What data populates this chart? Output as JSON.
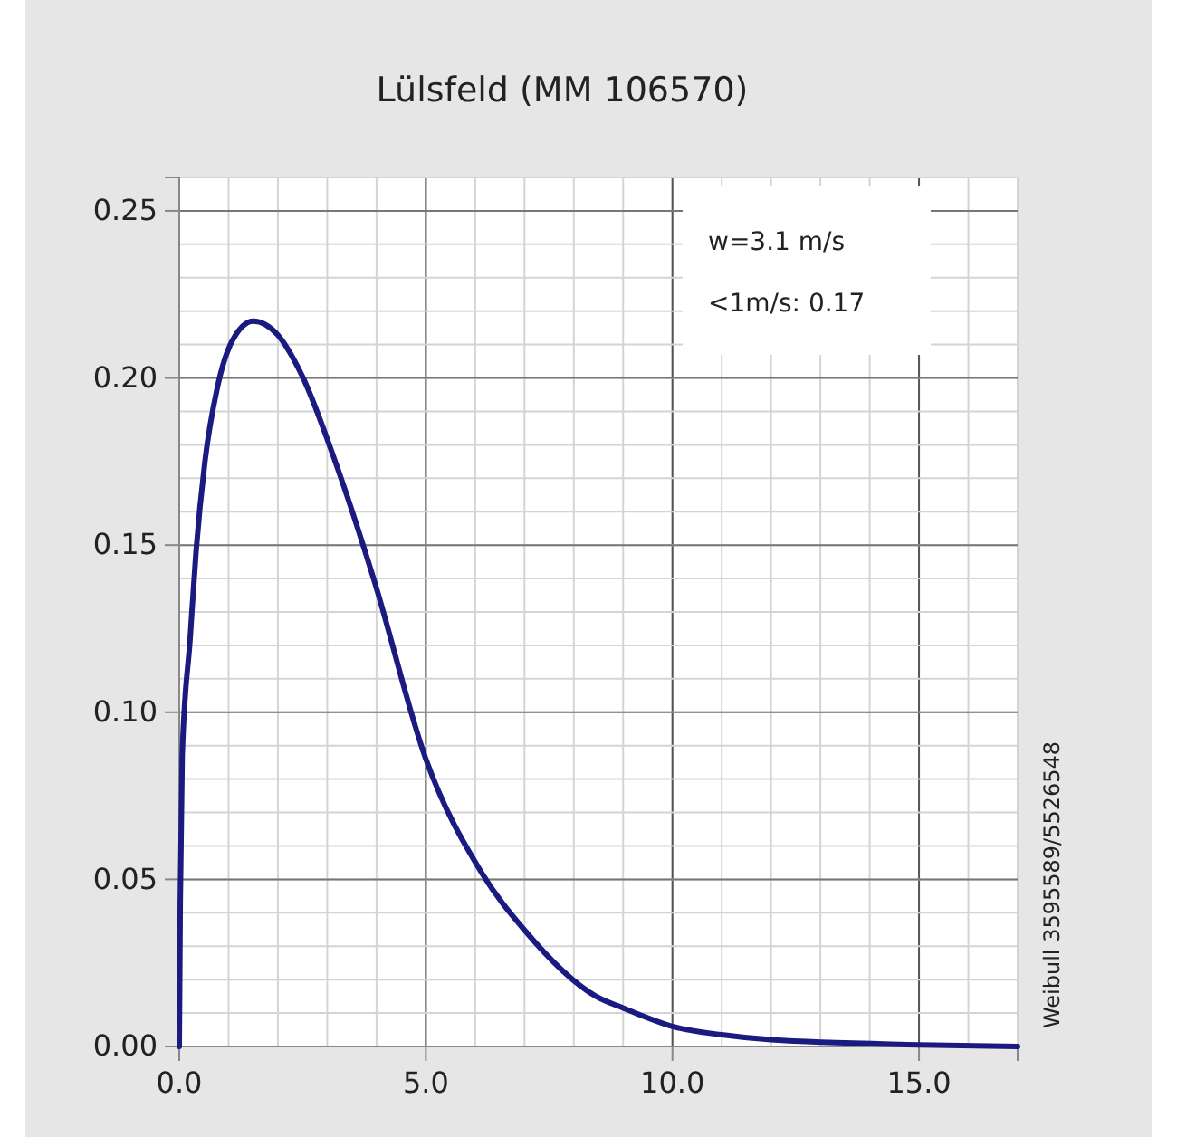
{
  "chart_data": {
    "type": "line",
    "title": "Lülsfeld (MM 106570)",
    "x": [
      0,
      0.02,
      0.06,
      0.22,
      0.34,
      0.52,
      0.77,
      1.07,
      1.5,
      1.99,
      2.48,
      3.21,
      3.94,
      5.0,
      6.13,
      6.99,
      8.45,
      9,
      10,
      11,
      12,
      15,
      17
    ],
    "series": [
      {
        "color": "#1a1a80",
        "values": [
          0,
          0.043,
          0.087,
          0.122,
          0.148,
          0.175,
          0.197,
          0.211,
          0.217,
          0.213,
          0.201,
          0.173,
          0.14,
          0.086,
          0.052,
          0.035,
          0.015,
          0.0115,
          0.006,
          0.0035,
          0.002,
          0.0005,
          0
        ]
      }
    ],
    "xlim": [
      0,
      17
    ],
    "ylim": [
      0,
      0.26
    ],
    "xticks": [
      {
        "value": 0,
        "label": "0.0"
      },
      {
        "value": 5,
        "label": "5.0"
      },
      {
        "value": 10,
        "label": "10.0"
      },
      {
        "value": 15,
        "label": "15.0"
      }
    ],
    "yticks": [
      {
        "value": 0,
        "label": "0.00"
      },
      {
        "value": 0.05,
        "label": "0.05"
      },
      {
        "value": 0.1,
        "label": "0.10"
      },
      {
        "value": 0.15,
        "label": "0.15"
      },
      {
        "value": 0.2,
        "label": "0.20"
      },
      {
        "value": 0.25,
        "label": "0.25"
      }
    ],
    "grid": true,
    "marker": "none",
    "line_style": "solid",
    "annotations": [
      "w=3.1 m/s",
      "<1m/s: 0.17",
      "Weibull 3595589/5526548"
    ]
  }
}
